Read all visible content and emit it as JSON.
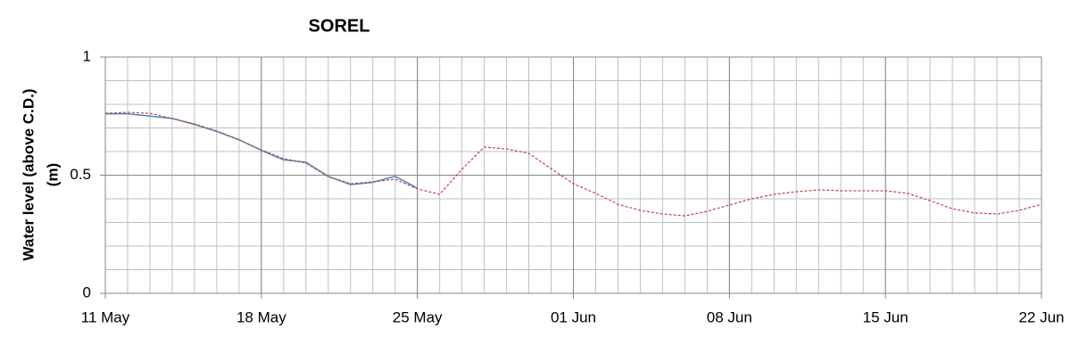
{
  "chart_data": {
    "type": "line",
    "title": "SOREL",
    "y_label": [
      "Water level (above C.D.)",
      "(m)"
    ],
    "x": [
      "11 May",
      "12 May",
      "13 May",
      "14 May",
      "15 May",
      "16 May",
      "17 May",
      "18 May",
      "19 May",
      "20 May",
      "21 May",
      "22 May",
      "23 May",
      "24 May",
      "25 May",
      "26 May",
      "27 May",
      "28 May",
      "29 May",
      "30 May",
      "31 May",
      "01 Jun",
      "02 Jun",
      "03 Jun",
      "04 Jun",
      "05 Jun",
      "06 Jun",
      "07 Jun",
      "08 Jun",
      "09 Jun",
      "10 Jun",
      "11 Jun",
      "12 Jun",
      "13 Jun",
      "14 Jun",
      "15 Jun",
      "16 Jun",
      "17 Jun",
      "18 Jun",
      "19 Jun",
      "20 Jun",
      "21 Jun",
      "22 Jun"
    ],
    "series": [
      {
        "color": "#4f81bd",
        "dashed": false,
        "values": [
          0.76,
          0.76,
          0.75,
          0.74,
          0.715,
          0.685,
          0.65,
          0.605,
          0.565,
          0.555,
          0.495,
          0.46,
          0.47,
          0.495,
          0.445,
          null,
          null,
          null,
          null,
          null,
          null,
          null,
          null,
          null,
          null,
          null,
          null,
          null,
          null,
          null,
          null,
          null,
          null,
          null,
          null,
          null,
          null,
          null,
          null,
          null,
          null,
          null,
          null
        ]
      },
      {
        "color": "#c0504d",
        "dashed": true,
        "values": [
          0.762,
          0.766,
          0.762,
          0.74,
          0.717,
          0.687,
          0.65,
          0.607,
          0.57,
          0.551,
          0.494,
          0.464,
          0.472,
          0.483,
          0.442,
          0.419,
          0.525,
          0.619,
          0.611,
          0.592,
          0.528,
          0.464,
          0.423,
          0.377,
          0.351,
          0.336,
          0.328,
          0.347,
          0.374,
          0.4,
          0.419,
          0.43,
          0.438,
          0.434,
          0.434,
          0.434,
          0.423,
          0.392,
          0.358,
          0.34,
          0.336,
          0.351,
          0.377
        ]
      }
    ],
    "xlim": [
      "11 May",
      "22 Jun"
    ],
    "xticks": [
      "11 May",
      "18 May",
      "25 May",
      "01 Jun",
      "08 Jun",
      "15 Jun",
      "22 Jun"
    ],
    "ylim": [
      0,
      1
    ],
    "yticks": [
      0,
      0.5,
      1
    ],
    "minor_yticks": [
      0.1,
      0.2,
      0.3,
      0.4,
      0.6,
      0.7,
      0.8,
      0.9
    ],
    "grid": true
  }
}
